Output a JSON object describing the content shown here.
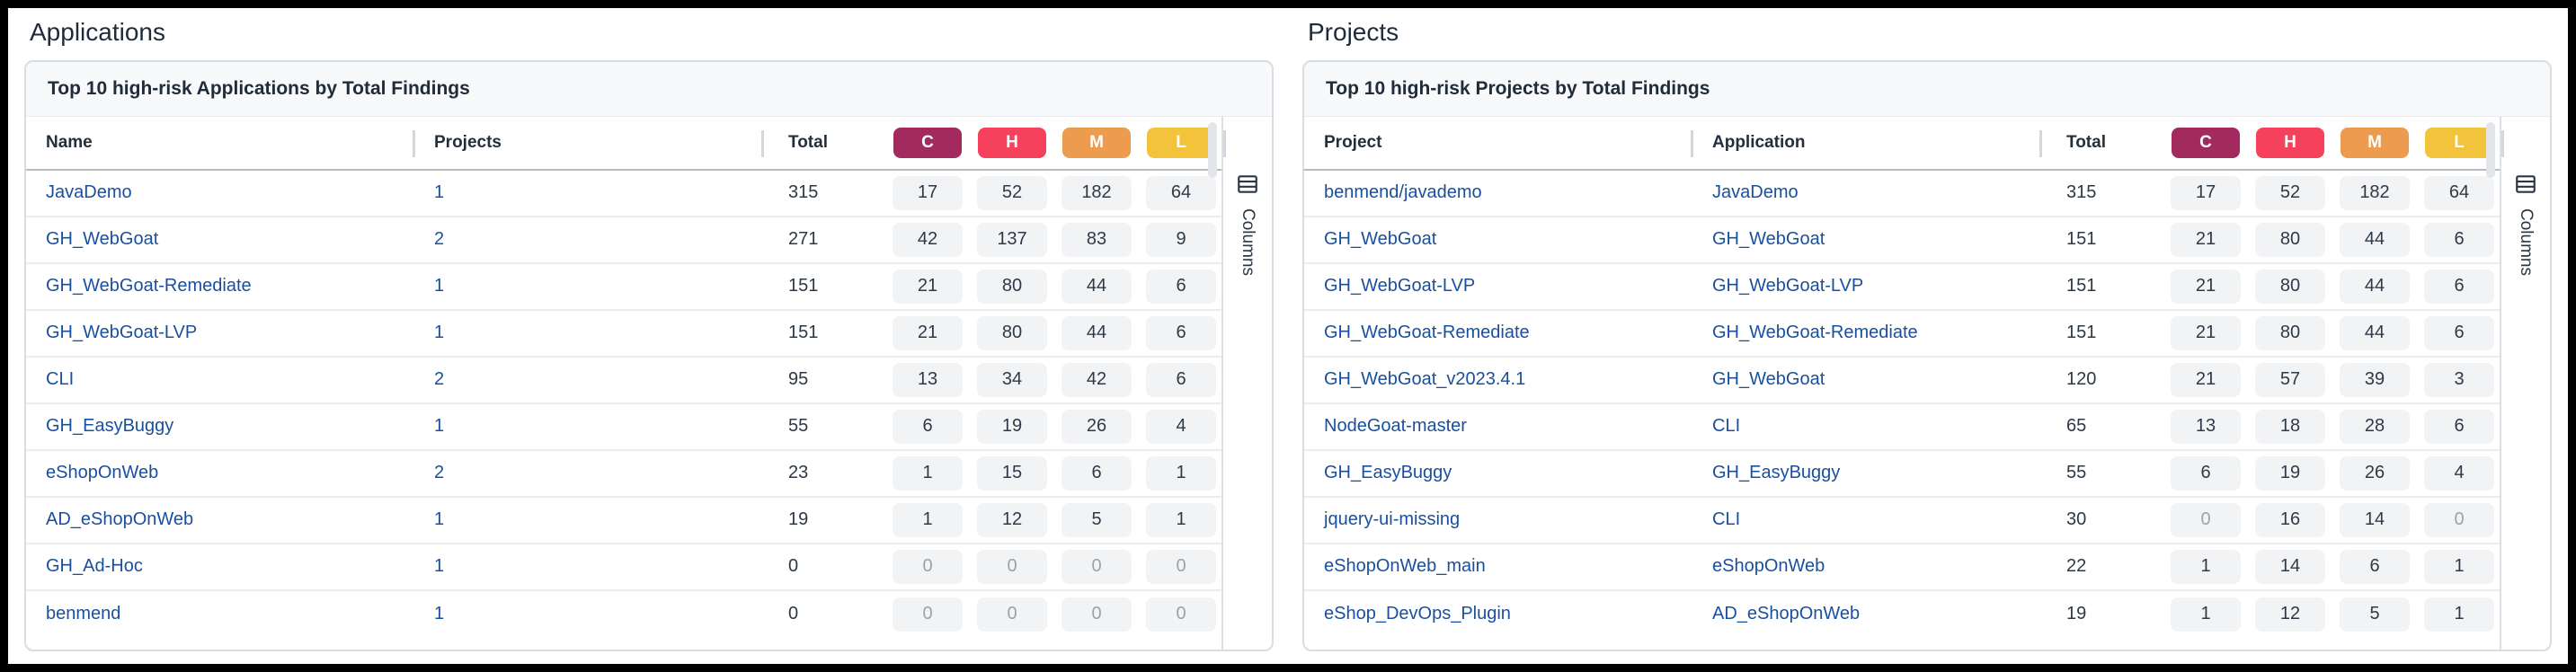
{
  "colors": {
    "critical": "#A32A5F",
    "high": "#F5415C",
    "medium": "#EC9B4F",
    "low": "#F3C43B",
    "link": "#1A4F9E"
  },
  "panels": [
    {
      "section_title": "Applications",
      "card_title": "Top 10 high-risk Applications by Total Findings",
      "column_headers": [
        "Name",
        "Projects",
        "Total"
      ],
      "severity_headers": [
        "C",
        "H",
        "M",
        "L"
      ],
      "columns_button_label": "Columns",
      "rows": [
        [
          "JavaDemo",
          "1",
          "315",
          "17",
          "52",
          "182",
          "64"
        ],
        [
          "GH_WebGoat",
          "2",
          "271",
          "42",
          "137",
          "83",
          "9"
        ],
        [
          "GH_WebGoat-Remediate",
          "1",
          "151",
          "21",
          "80",
          "44",
          "6"
        ],
        [
          "GH_WebGoat-LVP",
          "1",
          "151",
          "21",
          "80",
          "44",
          "6"
        ],
        [
          "CLI",
          "2",
          "95",
          "13",
          "34",
          "42",
          "6"
        ],
        [
          "GH_EasyBuggy",
          "1",
          "55",
          "6",
          "19",
          "26",
          "4"
        ],
        [
          "eShopOnWeb",
          "2",
          "23",
          "1",
          "15",
          "6",
          "1"
        ],
        [
          "AD_eShopOnWeb",
          "1",
          "19",
          "1",
          "12",
          "5",
          "1"
        ],
        [
          "GH_Ad-Hoc",
          "1",
          "0",
          "0",
          "0",
          "0",
          "0"
        ],
        [
          "benmend",
          "1",
          "0",
          "0",
          "0",
          "0",
          "0"
        ]
      ]
    },
    {
      "section_title": "Projects",
      "card_title": "Top 10 high-risk Projects by Total Findings",
      "column_headers": [
        "Project",
        "Application",
        "Total"
      ],
      "severity_headers": [
        "C",
        "H",
        "M",
        "L"
      ],
      "columns_button_label": "Columns",
      "rows": [
        [
          "benmend/javademo",
          "JavaDemo",
          "315",
          "17",
          "52",
          "182",
          "64"
        ],
        [
          "GH_WebGoat",
          "GH_WebGoat",
          "151",
          "21",
          "80",
          "44",
          "6"
        ],
        [
          "GH_WebGoat-LVP",
          "GH_WebGoat-LVP",
          "151",
          "21",
          "80",
          "44",
          "6"
        ],
        [
          "GH_WebGoat-Remediate",
          "GH_WebGoat-Remediate",
          "151",
          "21",
          "80",
          "44",
          "6"
        ],
        [
          "GH_WebGoat_v2023.4.1",
          "GH_WebGoat",
          "120",
          "21",
          "57",
          "39",
          "3"
        ],
        [
          "NodeGoat-master",
          "CLI",
          "65",
          "13",
          "18",
          "28",
          "6"
        ],
        [
          "GH_EasyBuggy",
          "GH_EasyBuggy",
          "55",
          "6",
          "19",
          "26",
          "4"
        ],
        [
          "jquery-ui-missing",
          "CLI",
          "30",
          "0",
          "16",
          "14",
          "0"
        ],
        [
          "eShopOnWeb_main",
          "eShopOnWeb",
          "22",
          "1",
          "14",
          "6",
          "1"
        ],
        [
          "eShop_DevOps_Plugin",
          "AD_eShopOnWeb",
          "19",
          "1",
          "12",
          "5",
          "1"
        ]
      ]
    }
  ]
}
